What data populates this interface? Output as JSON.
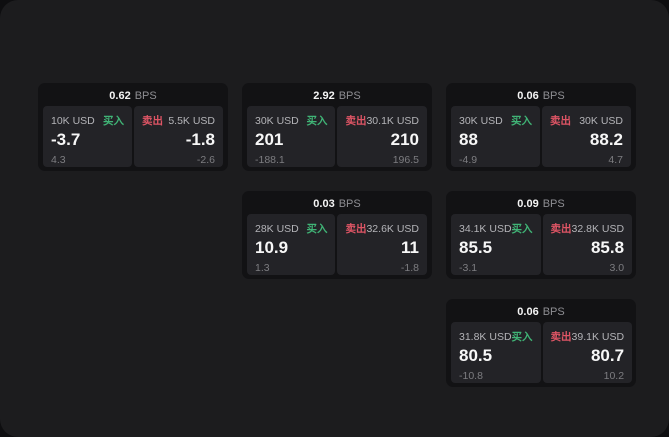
{
  "colors": {
    "buy_accent": "#40b476",
    "sell_accent": "#df5565",
    "panel_bg": "#1c1c1e",
    "card_bg": "#121214",
    "quote_bg": "#232327"
  },
  "labels": {
    "spread_unit": "BPS",
    "buy_side": "买入",
    "sell_side": "卖出"
  },
  "cards": [
    {
      "row": 0,
      "col": 0,
      "bps_value": "0.62",
      "buy": {
        "size": "10K USD",
        "price": "-3.7",
        "secondary": "4.3"
      },
      "sell": {
        "size": "5.5K USD",
        "price": "-1.8",
        "secondary": "-2.6"
      }
    },
    {
      "row": 0,
      "col": 1,
      "bps_value": "2.92",
      "buy": {
        "size": "30K USD",
        "price": "201",
        "secondary": "-188.1"
      },
      "sell": {
        "size": "30.1K USD",
        "price": "210",
        "secondary": "196.5"
      }
    },
    {
      "row": 0,
      "col": 2,
      "bps_value": "0.06",
      "buy": {
        "size": "30K USD",
        "price": "88",
        "secondary": "-4.9"
      },
      "sell": {
        "size": "30K USD",
        "price": "88.2",
        "secondary": "4.7"
      }
    },
    {
      "row": 1,
      "col": 1,
      "bps_value": "0.03",
      "buy": {
        "size": "28K USD",
        "price": "10.9",
        "secondary": "1.3"
      },
      "sell": {
        "size": "32.6K USD",
        "price": "11",
        "secondary": "-1.8"
      }
    },
    {
      "row": 1,
      "col": 2,
      "bps_value": "0.09",
      "buy": {
        "size": "34.1K USD",
        "price": "85.5",
        "secondary": "-3.1"
      },
      "sell": {
        "size": "32.8K USD",
        "price": "85.8",
        "secondary": "3.0"
      }
    },
    {
      "row": 2,
      "col": 2,
      "bps_value": "0.06",
      "buy": {
        "size": "31.8K USD",
        "price": "80.5",
        "secondary": "-10.8"
      },
      "sell": {
        "size": "39.1K USD",
        "price": "80.7",
        "secondary": "10.2"
      }
    }
  ]
}
